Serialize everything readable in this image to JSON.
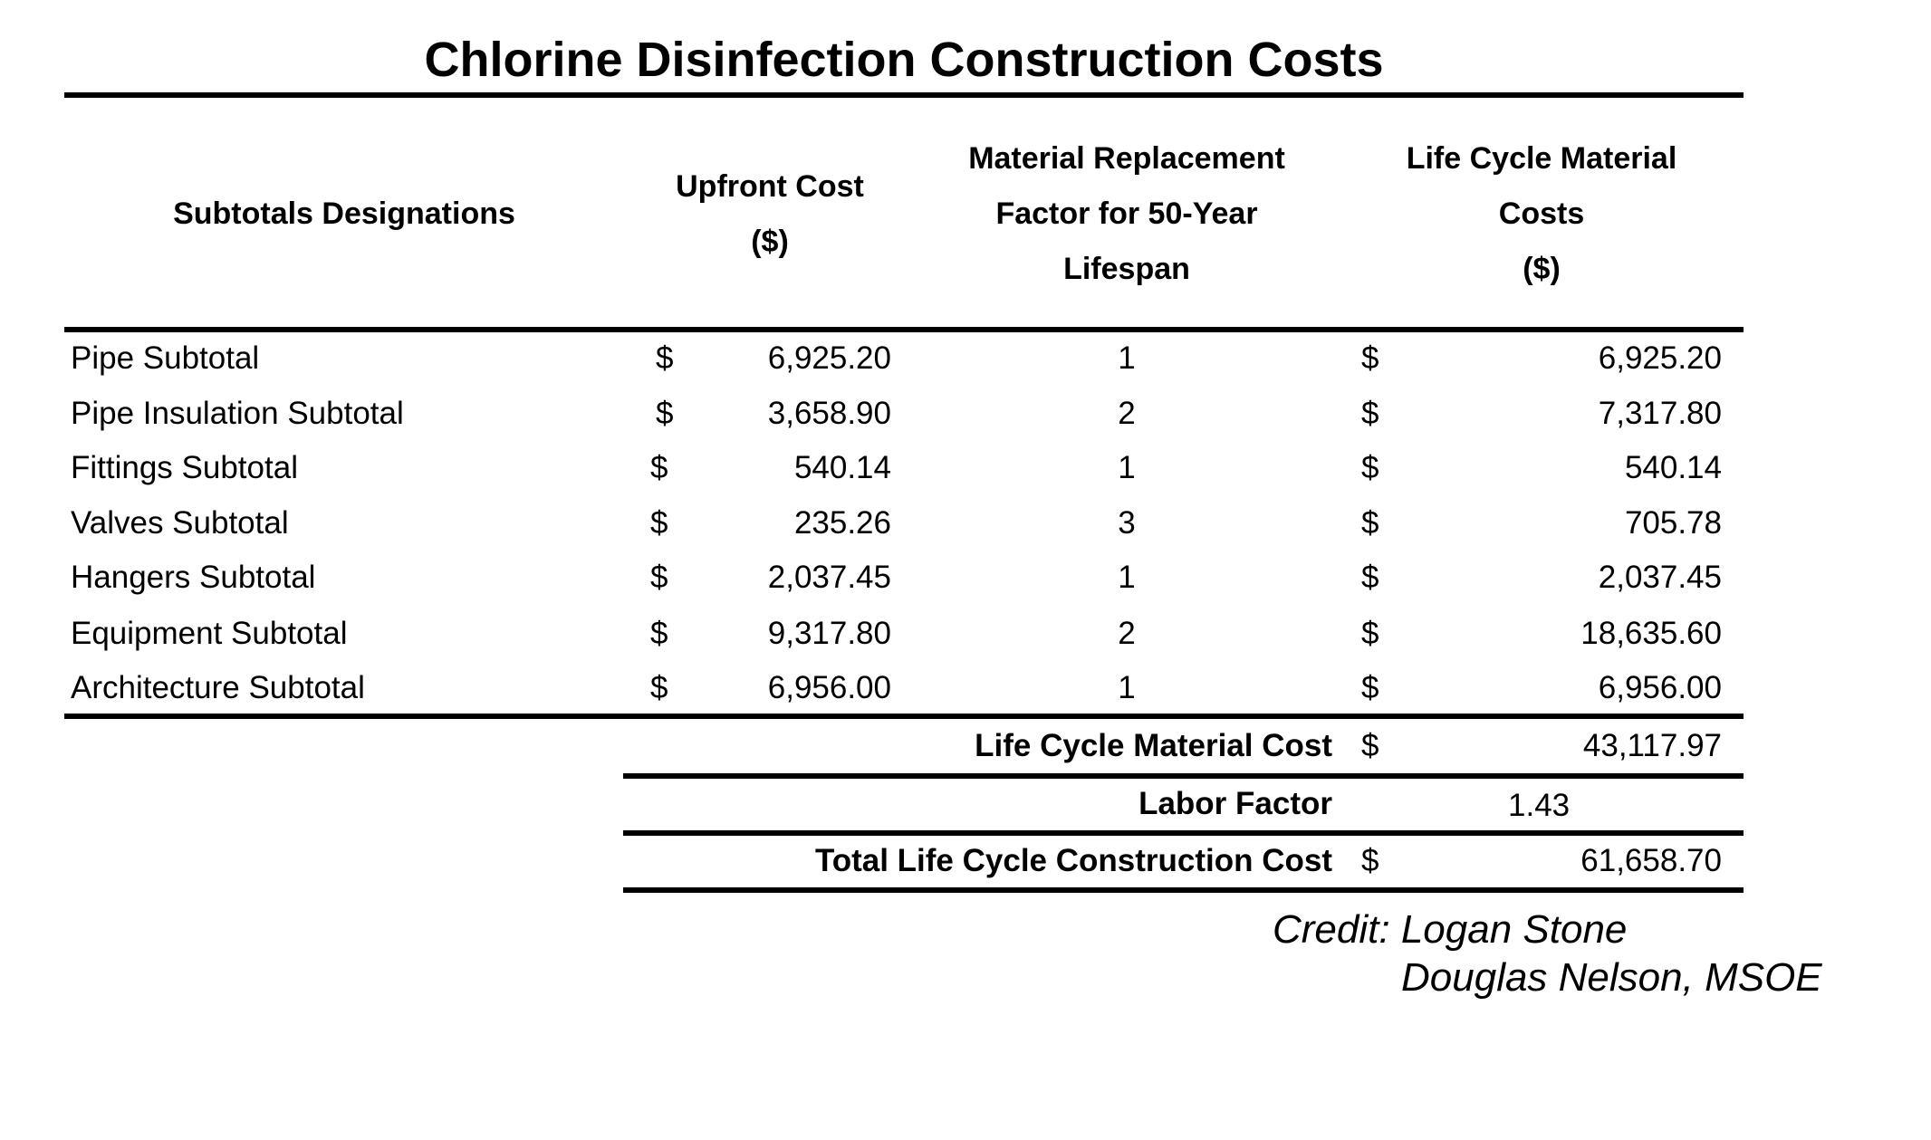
{
  "title": "Chlorine Disinfection Construction Costs",
  "headers": {
    "designation": "Subtotals Designations",
    "upfront": [
      "Upfront Cost",
      "($)"
    ],
    "factor": [
      "Material Replacement",
      "Factor for 50-Year",
      "Lifespan"
    ],
    "lifecycle": [
      "Life Cycle Material",
      "Costs",
      "($)"
    ]
  },
  "currency_symbol": "$",
  "rows": [
    {
      "label": "Pipe Subtotal",
      "upfront": "6,925.20",
      "factor": "1",
      "lifecycle": "6,925.20"
    },
    {
      "label": "Pipe Insulation Subtotal",
      "upfront": "3,658.90",
      "factor": "2",
      "lifecycle": "7,317.80"
    },
    {
      "label": "Fittings Subtotal",
      "upfront": "540.14",
      "factor": "1",
      "lifecycle": "540.14"
    },
    {
      "label": "Valves Subtotal",
      "upfront": "235.26",
      "factor": "3",
      "lifecycle": "705.78"
    },
    {
      "label": "Hangers Subtotal",
      "upfront": "2,037.45",
      "factor": "1",
      "lifecycle": "2,037.45"
    },
    {
      "label": "Equipment Subtotal",
      "upfront": "9,317.80",
      "factor": "2",
      "lifecycle": "18,635.60"
    },
    {
      "label": "Architecture Subtotal",
      "upfront": "6,956.00",
      "factor": "1",
      "lifecycle": "6,956.00"
    }
  ],
  "summary": {
    "material_cost_label": "Life Cycle Material Cost",
    "material_cost_value": "43,117.97",
    "labor_factor_label": "Labor Factor",
    "labor_factor_value": "1.43",
    "total_label": "Total Life Cycle Construction Cost",
    "total_value": "61,658.70"
  },
  "credit": {
    "line1": "Credit: Logan Stone",
    "line2": "Douglas Nelson, MSOE"
  }
}
